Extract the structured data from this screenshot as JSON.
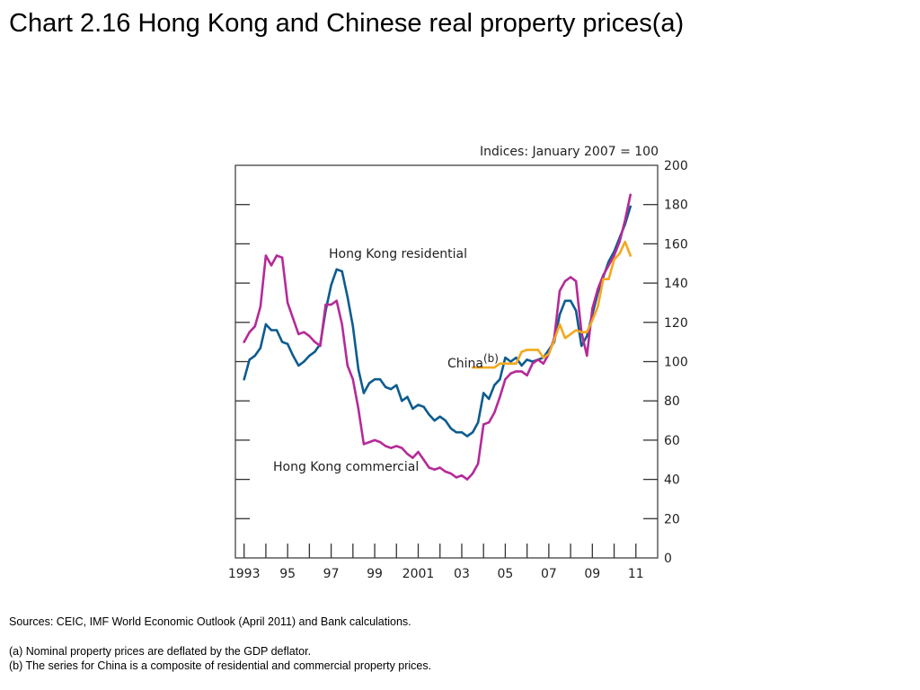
{
  "slide": {
    "title": "Chart 2.16  Hong Kong and Chinese real property prices(a)"
  },
  "chart_data": {
    "type": "line",
    "units_label": "Indices:  January 2007 = 100",
    "xlabel": "",
    "ylabel": "",
    "xlim": [
      1992.6,
      2012.0
    ],
    "ylim": [
      0,
      200
    ],
    "yticks": [
      0,
      20,
      40,
      60,
      80,
      100,
      120,
      140,
      160,
      180,
      200
    ],
    "xtick_labels": [
      {
        "x": 1993,
        "label": "1993"
      },
      {
        "x": 1995,
        "label": "95"
      },
      {
        "x": 1997,
        "label": "97"
      },
      {
        "x": 1999,
        "label": "99"
      },
      {
        "x": 2001,
        "label": "2001"
      },
      {
        "x": 2003,
        "label": "03"
      },
      {
        "x": 2005,
        "label": "05"
      },
      {
        "x": 2007,
        "label": "07"
      },
      {
        "x": 2009,
        "label": "09"
      },
      {
        "x": 2011,
        "label": "11"
      }
    ],
    "grid": false,
    "legend": "none (direct labels)",
    "annotations": [
      {
        "text": "Hong Kong residential",
        "series": "Hong Kong residential"
      },
      {
        "text": "China",
        "superscript": "(b)",
        "series": "China"
      },
      {
        "text": "Hong Kong commercial",
        "series": "Hong Kong commercial"
      }
    ],
    "series": [
      {
        "name": "Hong Kong residential",
        "color": "#0d5c8f",
        "points": [
          [
            1993.0,
            91
          ],
          [
            1993.25,
            101
          ],
          [
            1993.5,
            103
          ],
          [
            1993.75,
            107
          ],
          [
            1994.0,
            119
          ],
          [
            1994.25,
            116
          ],
          [
            1994.5,
            116
          ],
          [
            1994.75,
            110
          ],
          [
            1995.0,
            109
          ],
          [
            1995.25,
            103
          ],
          [
            1995.5,
            98
          ],
          [
            1995.75,
            100
          ],
          [
            1996.0,
            103
          ],
          [
            1996.25,
            105
          ],
          [
            1996.5,
            109
          ],
          [
            1996.75,
            126
          ],
          [
            1997.0,
            139
          ],
          [
            1997.25,
            147
          ],
          [
            1997.5,
            146
          ],
          [
            1997.75,
            133
          ],
          [
            1998.0,
            118
          ],
          [
            1998.25,
            96
          ],
          [
            1998.5,
            84
          ],
          [
            1998.75,
            89
          ],
          [
            1999.0,
            91
          ],
          [
            1999.25,
            91
          ],
          [
            1999.5,
            87
          ],
          [
            1999.75,
            86
          ],
          [
            2000.0,
            88
          ],
          [
            2000.25,
            80
          ],
          [
            2000.5,
            82
          ],
          [
            2000.75,
            76
          ],
          [
            2001.0,
            78
          ],
          [
            2001.25,
            77
          ],
          [
            2001.5,
            73
          ],
          [
            2001.75,
            70
          ],
          [
            2002.0,
            72
          ],
          [
            2002.25,
            70
          ],
          [
            2002.5,
            66
          ],
          [
            2002.75,
            64
          ],
          [
            2003.0,
            64
          ],
          [
            2003.25,
            62
          ],
          [
            2003.5,
            64
          ],
          [
            2003.75,
            69
          ],
          [
            2004.0,
            84
          ],
          [
            2004.25,
            81
          ],
          [
            2004.5,
            88
          ],
          [
            2004.75,
            91
          ],
          [
            2005.0,
            102
          ],
          [
            2005.25,
            100
          ],
          [
            2005.5,
            102
          ],
          [
            2005.75,
            98
          ],
          [
            2006.0,
            101
          ],
          [
            2006.25,
            100
          ],
          [
            2006.5,
            101
          ],
          [
            2006.75,
            102
          ],
          [
            2007.0,
            106
          ],
          [
            2007.25,
            110
          ],
          [
            2007.5,
            124
          ],
          [
            2007.75,
            131
          ],
          [
            2008.0,
            131
          ],
          [
            2008.25,
            126
          ],
          [
            2008.5,
            108
          ],
          [
            2008.75,
            113
          ],
          [
            2009.0,
            124
          ],
          [
            2009.25,
            135
          ],
          [
            2009.5,
            143
          ],
          [
            2009.75,
            151
          ],
          [
            2010.0,
            156
          ],
          [
            2010.25,
            163
          ],
          [
            2010.5,
            170
          ],
          [
            2010.75,
            179
          ]
        ]
      },
      {
        "name": "Hong Kong commercial",
        "color": "#b52a98",
        "points": [
          [
            1993.0,
            110
          ],
          [
            1993.25,
            115
          ],
          [
            1993.5,
            118
          ],
          [
            1993.75,
            128
          ],
          [
            1994.0,
            154
          ],
          [
            1994.25,
            149
          ],
          [
            1994.5,
            154
          ],
          [
            1994.75,
            153
          ],
          [
            1995.0,
            130
          ],
          [
            1995.25,
            122
          ],
          [
            1995.5,
            114
          ],
          [
            1995.75,
            115
          ],
          [
            1996.0,
            113
          ],
          [
            1996.25,
            110
          ],
          [
            1996.5,
            108
          ],
          [
            1996.75,
            129
          ],
          [
            1997.0,
            129
          ],
          [
            1997.25,
            131
          ],
          [
            1997.5,
            119
          ],
          [
            1997.75,
            98
          ],
          [
            1998.0,
            91
          ],
          [
            1998.25,
            76
          ],
          [
            1998.5,
            58
          ],
          [
            1998.75,
            59
          ],
          [
            1999.0,
            60
          ],
          [
            1999.25,
            59
          ],
          [
            1999.5,
            57
          ],
          [
            1999.75,
            56
          ],
          [
            2000.0,
            57
          ],
          [
            2000.25,
            56
          ],
          [
            2000.5,
            53
          ],
          [
            2000.75,
            51
          ],
          [
            2001.0,
            54
          ],
          [
            2001.25,
            50
          ],
          [
            2001.5,
            46
          ],
          [
            2001.75,
            45
          ],
          [
            2002.0,
            46
          ],
          [
            2002.25,
            44
          ],
          [
            2002.5,
            43
          ],
          [
            2002.75,
            41
          ],
          [
            2003.0,
            42
          ],
          [
            2003.25,
            40
          ],
          [
            2003.5,
            43
          ],
          [
            2003.75,
            48
          ],
          [
            2004.0,
            68
          ],
          [
            2004.25,
            69
          ],
          [
            2004.5,
            74
          ],
          [
            2004.75,
            82
          ],
          [
            2005.0,
            91
          ],
          [
            2005.25,
            94
          ],
          [
            2005.5,
            95
          ],
          [
            2005.75,
            95
          ],
          [
            2006.0,
            93
          ],
          [
            2006.25,
            99
          ],
          [
            2006.5,
            101
          ],
          [
            2006.75,
            99
          ],
          [
            2007.0,
            104
          ],
          [
            2007.25,
            112
          ],
          [
            2007.5,
            136
          ],
          [
            2007.75,
            141
          ],
          [
            2008.0,
            143
          ],
          [
            2008.25,
            141
          ],
          [
            2008.5,
            115
          ],
          [
            2008.75,
            103
          ],
          [
            2009.0,
            127
          ],
          [
            2009.25,
            137
          ],
          [
            2009.5,
            144
          ],
          [
            2009.75,
            149
          ],
          [
            2010.0,
            154
          ],
          [
            2010.25,
            161
          ],
          [
            2010.5,
            172
          ],
          [
            2010.75,
            185
          ]
        ]
      },
      {
        "name": "China",
        "color": "#f2a81d",
        "points": [
          [
            2003.5,
            97
          ],
          [
            2004.0,
            97
          ],
          [
            2004.5,
            97
          ],
          [
            2004.75,
            99
          ],
          [
            2005.0,
            99
          ],
          [
            2005.5,
            99
          ],
          [
            2005.75,
            105
          ],
          [
            2006.0,
            106
          ],
          [
            2006.5,
            106
          ],
          [
            2006.75,
            102
          ],
          [
            2007.0,
            104
          ],
          [
            2007.25,
            111
          ],
          [
            2007.5,
            119
          ],
          [
            2007.75,
            112
          ],
          [
            2008.0,
            114
          ],
          [
            2008.25,
            116
          ],
          [
            2008.5,
            115
          ],
          [
            2008.75,
            115
          ],
          [
            2009.0,
            121
          ],
          [
            2009.25,
            128
          ],
          [
            2009.5,
            142
          ],
          [
            2009.75,
            142
          ],
          [
            2010.0,
            152
          ],
          [
            2010.25,
            155
          ],
          [
            2010.5,
            161
          ],
          [
            2010.75,
            154
          ]
        ]
      }
    ]
  },
  "footnotes": {
    "sources": "Sources:  CEIC, IMF World Economic Outlook (April 2011) and Bank calculations.",
    "note_a": "(a)  Nominal property prices are deflated by the GDP deflator.",
    "note_b": "(b)  The series for China is a composite of residential and commercial property prices."
  }
}
